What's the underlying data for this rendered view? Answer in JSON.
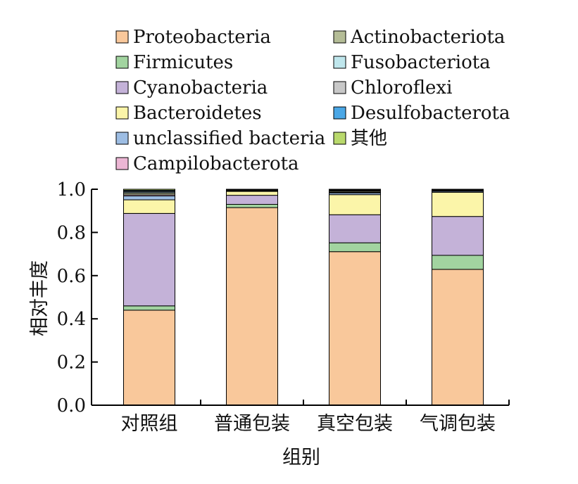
{
  "chart_data": {
    "type": "bar",
    "stacked": true,
    "categories": [
      "对照组",
      "普通包装",
      "真空包装",
      "气调包装"
    ],
    "xlabel": "组别",
    "ylabel": "相对丰度",
    "ylim": [
      0,
      1.0
    ],
    "yticks": [
      "0.0",
      "0.2",
      "0.4",
      "0.6",
      "0.8",
      "1.0"
    ],
    "grid": false,
    "legend_position": "top",
    "series": [
      {
        "name": "Proteobacteria",
        "color": "#f9c89b",
        "values": [
          0.44,
          0.915,
          0.711,
          0.629
        ]
      },
      {
        "name": "Firmicutes",
        "color": "#a2d4a0",
        "values": [
          0.02,
          0.015,
          0.041,
          0.065
        ]
      },
      {
        "name": "Cyanobacteria",
        "color": "#c4b2d8",
        "values": [
          0.428,
          0.042,
          0.13,
          0.18
        ]
      },
      {
        "name": "Bacteroidetes",
        "color": "#fbf5a9",
        "values": [
          0.063,
          0.018,
          0.093,
          0.112
        ]
      },
      {
        "name": "unclassified bacteria",
        "color": "#9dbde3",
        "values": [
          0.018,
          0.003,
          0.008,
          0.005
        ]
      },
      {
        "name": "Campilobacterota",
        "color": "#ecb6d4",
        "values": [
          0.005,
          0.001,
          0.003,
          0.001
        ]
      },
      {
        "name": "Actinobacteriota",
        "color": "#b4bc96",
        "values": [
          0.008,
          0.002,
          0.005,
          0.002
        ]
      },
      {
        "name": "Fusobacteriota",
        "color": "#bfe6ec",
        "values": [
          0.005,
          0.001,
          0.002,
          0.001
        ]
      },
      {
        "name": "Chloroflexi",
        "color": "#c8c8c8",
        "values": [
          0.004,
          0.001,
          0.002,
          0.001
        ]
      },
      {
        "name": "Desulfobacterota",
        "color": "#4aa7e6",
        "values": [
          0.004,
          0.001,
          0.002,
          0.001
        ]
      },
      {
        "name": "其他",
        "color": "#b9d96c",
        "values": [
          0.005,
          0.001,
          0.003,
          0.003
        ]
      }
    ]
  }
}
